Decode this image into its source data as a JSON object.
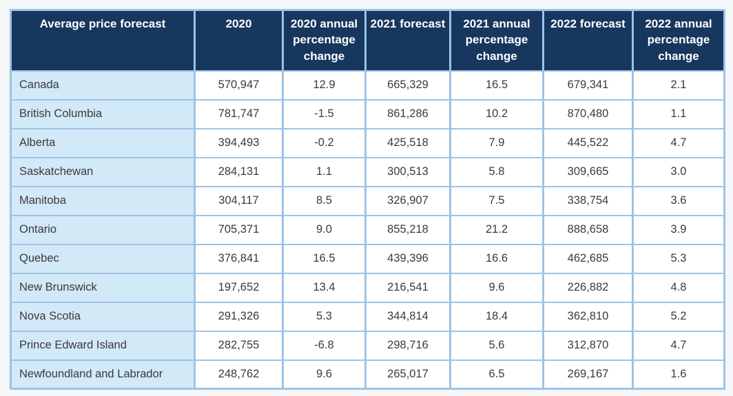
{
  "table": {
    "columns": [
      "Average price forecast",
      "2020",
      "2020 annual percentage change",
      "2021 forecast",
      "2021 annual percentage change",
      "2022 forecast",
      "2022 annual percentage change"
    ],
    "rows": [
      {
        "region": "Canada",
        "values": [
          "570,947",
          "12.9",
          "665,329",
          "16.5",
          "679,341",
          "2.1"
        ]
      },
      {
        "region": "British Columbia",
        "values": [
          "781,747",
          "-1.5",
          "861,286",
          "10.2",
          "870,480",
          "1.1"
        ]
      },
      {
        "region": "Alberta",
        "values": [
          "394,493",
          "-0.2",
          "425,518",
          "7.9",
          "445,522",
          "4.7"
        ]
      },
      {
        "region": "Saskatchewan",
        "values": [
          "284,131",
          "1.1",
          "300,513",
          "5.8",
          "309,665",
          "3.0"
        ]
      },
      {
        "region": "Manitoba",
        "values": [
          "304,117",
          "8.5",
          "326,907",
          "7.5",
          "338,754",
          "3.6"
        ]
      },
      {
        "region": "Ontario",
        "values": [
          "705,371",
          "9.0",
          "855,218",
          "21.2",
          "888,658",
          "3.9"
        ]
      },
      {
        "region": "Quebec",
        "values": [
          "376,841",
          "16.5",
          "439,396",
          "16.6",
          "462,685",
          "5.3"
        ]
      },
      {
        "region": "New Brunswick",
        "values": [
          "197,652",
          "13.4",
          "216,541",
          "9.6",
          "226,882",
          "4.8"
        ]
      },
      {
        "region": "Nova Scotia",
        "values": [
          "291,326",
          "5.3",
          "344,814",
          "18.4",
          "362,810",
          "5.2"
        ]
      },
      {
        "region": "Prince Edward Island",
        "values": [
          "282,755",
          "-6.8",
          "298,716",
          "5.6",
          "312,870",
          "4.7"
        ]
      },
      {
        "region": "Newfoundland and Labrador",
        "values": [
          "248,762",
          "9.6",
          "265,017",
          "6.5",
          "269,167",
          "1.6"
        ]
      }
    ]
  },
  "colors": {
    "header_bg": "#17375E",
    "header_text": "#FFFFFF",
    "row_label_bg": "#D2E9F7",
    "cell_bg": "#FFFFFF",
    "border": "#9DC3E6",
    "body_text": "#3A3A3A",
    "page_bg": "#F5F6F7"
  },
  "chart_data": {
    "type": "table",
    "title": "Average price forecast",
    "columns": [
      "Average price forecast",
      "2020",
      "2020 annual percentage change",
      "2021 forecast",
      "2021 annual percentage change",
      "2022 forecast",
      "2022 annual percentage change"
    ],
    "rows": [
      [
        "Canada",
        570947,
        12.9,
        665329,
        16.5,
        679341,
        2.1
      ],
      [
        "British Columbia",
        781747,
        -1.5,
        861286,
        10.2,
        870480,
        1.1
      ],
      [
        "Alberta",
        394493,
        -0.2,
        425518,
        7.9,
        445522,
        4.7
      ],
      [
        "Saskatchewan",
        284131,
        1.1,
        300513,
        5.8,
        309665,
        3.0
      ],
      [
        "Manitoba",
        304117,
        8.5,
        326907,
        7.5,
        338754,
        3.6
      ],
      [
        "Ontario",
        705371,
        9.0,
        855218,
        21.2,
        888658,
        3.9
      ],
      [
        "Quebec",
        376841,
        16.5,
        439396,
        16.6,
        462685,
        5.3
      ],
      [
        "New Brunswick",
        197652,
        13.4,
        216541,
        9.6,
        226882,
        4.8
      ],
      [
        "Nova Scotia",
        291326,
        5.3,
        344814,
        18.4,
        362810,
        5.2
      ],
      [
        "Prince Edward Island",
        282755,
        -6.8,
        298716,
        5.6,
        312870,
        4.7
      ],
      [
        "Newfoundland and Labrador",
        248762,
        9.6,
        265017,
        6.5,
        269167,
        1.6
      ]
    ]
  }
}
